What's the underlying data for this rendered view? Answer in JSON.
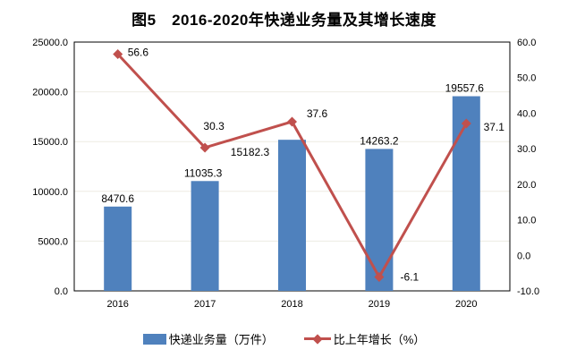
{
  "chart_data": {
    "type": "combo",
    "title": "图5　2016-2020年快递业务量及其增长速度",
    "categories": [
      "2016",
      "2017",
      "2018",
      "2019",
      "2020"
    ],
    "series": [
      {
        "name": "快递业务量（万件）",
        "type": "bar",
        "axis": "left",
        "color": "#4F81BD",
        "values": [
          8470.6,
          11035.3,
          15182.3,
          14263.2,
          19557.6
        ]
      },
      {
        "name": "比上年增长（%）",
        "type": "line",
        "axis": "right",
        "color": "#C0504D",
        "values": [
          56.6,
          30.3,
          37.6,
          -6.1,
          37.1
        ]
      }
    ],
    "left_axis": {
      "min": 0,
      "max": 25000,
      "step": 5000,
      "tick_labels": [
        "0.0",
        "5000.0",
        "10000.0",
        "15000.0",
        "20000.0",
        "25000.0"
      ]
    },
    "right_axis": {
      "min": -10,
      "max": 60,
      "step": 10,
      "tick_labels": [
        "-10.0",
        "0.0",
        "10.0",
        "20.0",
        "30.0",
        "40.0",
        "50.0",
        "60.0"
      ]
    },
    "grid": "horizontal, left axis only",
    "legend_position": "bottom",
    "gridline_color": "#EDECE2",
    "axis_color": "#000000"
  }
}
